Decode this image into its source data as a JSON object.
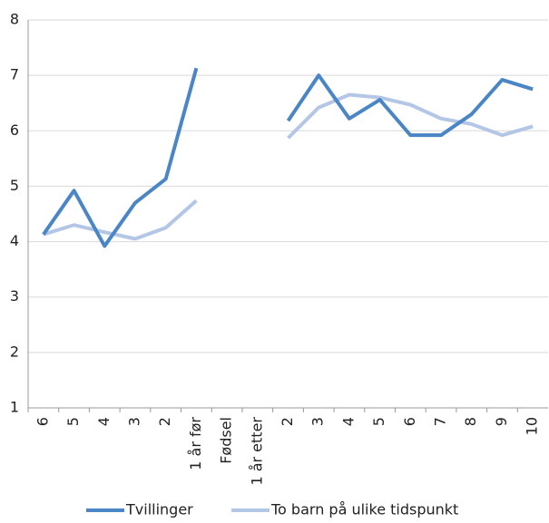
{
  "chart_data": {
    "type": "line",
    "categories": [
      "6",
      "5",
      "4",
      "3",
      "2",
      "1 år før",
      "Fødsel",
      "1 år etter",
      "2",
      "3",
      "4",
      "5",
      "6",
      "7",
      "8",
      "9",
      "10"
    ],
    "series": [
      {
        "name": "Tvillinger",
        "color": "#4a86c5",
        "values": [
          4.13,
          4.92,
          3.92,
          4.7,
          5.13,
          7.13,
          null,
          null,
          6.18,
          7.0,
          6.22,
          6.56,
          5.92,
          5.92,
          6.3,
          6.92,
          6.75
        ]
      },
      {
        "name": "To barn på ulike tidspunkt",
        "color": "#b3c6e6",
        "values": [
          4.13,
          4.3,
          4.17,
          4.05,
          4.25,
          4.74,
          null,
          null,
          5.87,
          6.42,
          6.65,
          6.6,
          6.47,
          6.22,
          6.12,
          5.92,
          6.08
        ]
      }
    ],
    "ylim": [
      1,
      8
    ],
    "yticks": [
      1,
      2,
      3,
      4,
      5,
      6,
      7,
      8
    ],
    "grid": true,
    "legend": "bottom"
  }
}
